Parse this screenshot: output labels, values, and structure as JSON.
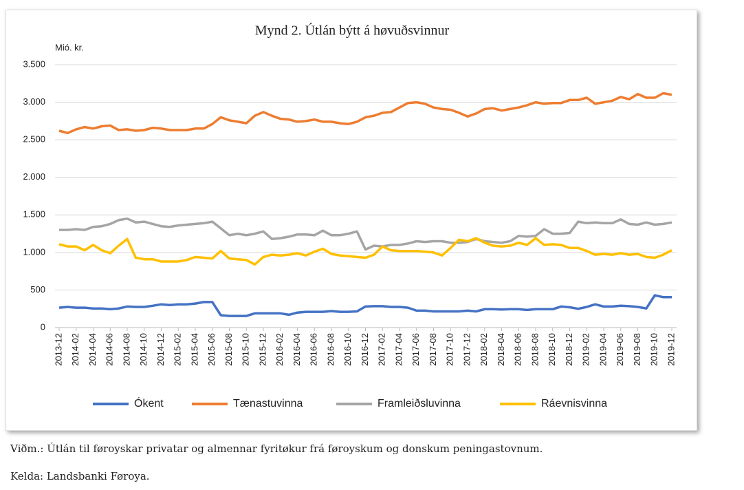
{
  "chart_data": {
    "type": "line",
    "title": "Mynd 2. Útlán býtt á høvuðsvinnur",
    "y_label": "Mió. kr.",
    "categories": [
      "2013-12",
      null,
      "2014-02",
      null,
      "2014-04",
      null,
      "2014-06",
      null,
      "2014-08",
      null,
      "2014-10",
      null,
      "2014-12",
      null,
      "2015-02",
      null,
      "2015-04",
      null,
      "2015-06",
      null,
      "2015-08",
      null,
      "2015-10",
      null,
      "2015-12",
      null,
      "2016-02",
      null,
      "2016-04",
      null,
      "2016-06",
      null,
      "2016-08",
      null,
      "2016-10",
      null,
      "2016-12",
      null,
      "2017-02",
      null,
      "2017-04",
      null,
      "2017-06",
      null,
      "2017-08",
      null,
      "2017-10",
      null,
      "2017-12",
      null,
      "2018-02",
      null,
      "2018-04",
      null,
      "2018-06",
      null,
      "2018-08",
      null,
      "2018-10",
      null,
      "2018-12",
      null,
      "2019-02",
      null,
      "2019-04",
      null,
      "2019-06",
      null,
      "2019-08",
      null,
      "2019-10",
      null,
      "2019-12"
    ],
    "series": [
      {
        "name": "Ókent",
        "color": "#4472c4",
        "values": [
          265,
          275,
          265,
          265,
          255,
          255,
          245,
          255,
          280,
          275,
          275,
          290,
          310,
          300,
          310,
          310,
          320,
          340,
          340,
          165,
          155,
          155,
          155,
          190,
          190,
          190,
          190,
          170,
          200,
          210,
          210,
          210,
          220,
          210,
          210,
          215,
          280,
          285,
          285,
          275,
          275,
          265,
          225,
          225,
          215,
          215,
          215,
          215,
          225,
          215,
          245,
          245,
          240,
          245,
          245,
          235,
          245,
          245,
          245,
          280,
          270,
          250,
          275,
          310,
          280,
          280,
          290,
          285,
          275,
          255,
          430,
          405,
          405
        ]
      },
      {
        "name": "Tænastuvinna",
        "color": "#ed7d31",
        "values": [
          2620,
          2590,
          2640,
          2670,
          2650,
          2680,
          2690,
          2630,
          2640,
          2620,
          2630,
          2660,
          2650,
          2630,
          2630,
          2630,
          2650,
          2650,
          2710,
          2800,
          2760,
          2740,
          2720,
          2820,
          2870,
          2820,
          2780,
          2770,
          2740,
          2750,
          2770,
          2740,
          2740,
          2720,
          2710,
          2740,
          2800,
          2820,
          2860,
          2870,
          2930,
          2990,
          3000,
          2980,
          2930,
          2910,
          2900,
          2860,
          2810,
          2850,
          2910,
          2920,
          2890,
          2910,
          2930,
          2960,
          3000,
          2980,
          2990,
          2990,
          3030,
          3030,
          3060,
          2980,
          3000,
          3020,
          3070,
          3040,
          3110,
          3060,
          3060,
          3120,
          3100
        ]
      },
      {
        "name": "Framleiðsluvinna",
        "color": "#a5a5a5",
        "values": [
          1300,
          1300,
          1310,
          1300,
          1340,
          1350,
          1380,
          1430,
          1450,
          1400,
          1410,
          1380,
          1350,
          1340,
          1360,
          1370,
          1380,
          1390,
          1410,
          1320,
          1230,
          1250,
          1230,
          1250,
          1280,
          1180,
          1190,
          1210,
          1240,
          1240,
          1230,
          1290,
          1230,
          1230,
          1250,
          1280,
          1040,
          1090,
          1080,
          1100,
          1100,
          1120,
          1150,
          1140,
          1150,
          1150,
          1130,
          1130,
          1140,
          1180,
          1150,
          1140,
          1130,
          1150,
          1220,
          1210,
          1220,
          1310,
          1250,
          1250,
          1260,
          1410,
          1390,
          1400,
          1390,
          1390,
          1440,
          1380,
          1370,
          1400,
          1370,
          1380,
          1400
        ]
      },
      {
        "name": "Ráevnisvinna",
        "color": "#ffc000",
        "values": [
          1110,
          1080,
          1080,
          1030,
          1100,
          1030,
          990,
          1090,
          1180,
          930,
          910,
          910,
          880,
          880,
          880,
          900,
          940,
          930,
          920,
          1020,
          920,
          910,
          900,
          840,
          940,
          970,
          960,
          970,
          990,
          960,
          1010,
          1050,
          980,
          960,
          950,
          940,
          930,
          970,
          1080,
          1030,
          1020,
          1020,
          1020,
          1010,
          1000,
          960,
          1060,
          1170,
          1150,
          1190,
          1130,
          1090,
          1080,
          1090,
          1130,
          1100,
          1190,
          1100,
          1110,
          1100,
          1060,
          1060,
          1020,
          970,
          980,
          970,
          990,
          970,
          980,
          940,
          930,
          970,
          1030
        ]
      }
    ],
    "ylim": [
      0,
      3500
    ],
    "yticks": [
      0,
      500,
      {
        "value": 1000,
        "label": "1.000"
      },
      {
        "value": 1500,
        "label": "1.500"
      },
      {
        "value": 2000,
        "label": "2.000"
      },
      {
        "value": 2500,
        "label": "2.500"
      },
      {
        "value": 3000,
        "label": "3.000"
      },
      {
        "value": 3500,
        "label": "3.500"
      }
    ],
    "grid": true,
    "legend": "bottom"
  },
  "note": "Viðm.: Útlán til føroyskar privatar og almennar fyritøkur frá føroyskum og donskum peningastovnum.",
  "source": "Kelda: Landsbanki Føroya."
}
